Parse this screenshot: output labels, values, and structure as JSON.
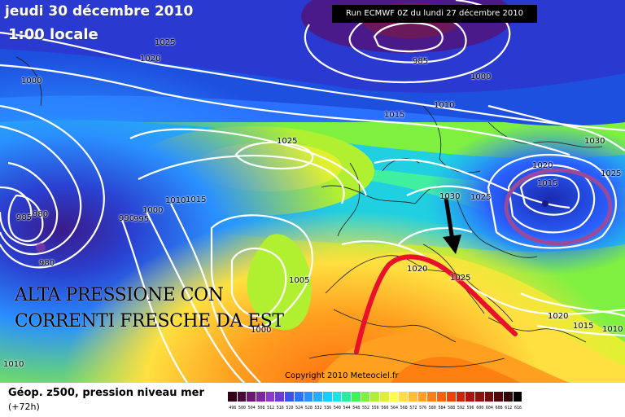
{
  "header": {
    "date": "jeudi 30 décembre 2010",
    "local_time": "1:00 locale",
    "run_info": "Run ECMWF 0Z du lundi 27 décembre 2010"
  },
  "annotation": {
    "line1": "ALTA PRESSIONE CON",
    "line2": "CORRENTI FRESCHE DA EST"
  },
  "copyright": "Copyright 2010 Meteociel.fr",
  "isobar_labels": [
    "1025",
    "1020",
    "1000",
    "985",
    "1000",
    "1010",
    "1015",
    "1025",
    "1030",
    "1025",
    "1020",
    "1015",
    "1030",
    "1025",
    "985",
    "980",
    "990",
    "995",
    "1000",
    "1010",
    "1015",
    "980",
    "1005",
    "1020",
    "1025",
    "1000",
    "1010",
    "1020",
    "1015",
    "1010"
  ],
  "legend": {
    "parameter": "Géop. z500, pression niveau mer",
    "lead_time": "(+72h)",
    "scale": [
      "496",
      "500",
      "504",
      "508",
      "512",
      "516",
      "520",
      "524",
      "528",
      "532",
      "536",
      "540",
      "544",
      "548",
      "552",
      "556",
      "560",
      "564",
      "568",
      "572",
      "576",
      "580",
      "584",
      "588",
      "592",
      "596",
      "600",
      "604",
      "608",
      "612",
      "616"
    ],
    "colors": [
      "#33001a",
      "#4a0a3a",
      "#6a1a6a",
      "#7a2a9a",
      "#8a3ac8",
      "#6a3ae0",
      "#4050f0",
      "#3070ff",
      "#2a90ff",
      "#20b0ff",
      "#10d0ff",
      "#10e8e0",
      "#20f0a0",
      "#40f060",
      "#80f040",
      "#b0f030",
      "#e0f030",
      "#ffff40",
      "#ffe040",
      "#ffc030",
      "#ffa020",
      "#ff8010",
      "#ff6010",
      "#f04010",
      "#d02010",
      "#b01010",
      "#901010",
      "#700c0c",
      "#500808",
      "#300404",
      "#000000"
    ],
    "accent_red": "#e8102a",
    "accent_purple": "#9a4a9a"
  }
}
